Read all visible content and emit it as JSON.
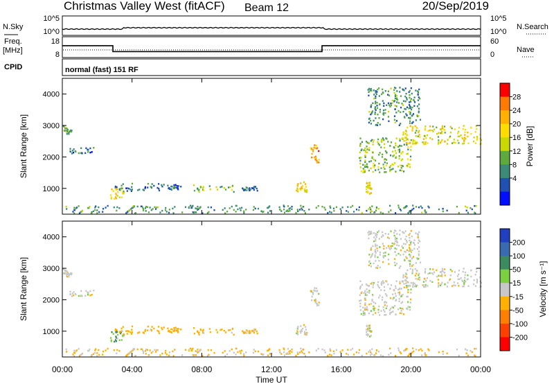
{
  "header": {
    "station": "Christmas Valley West (fitACF)",
    "beam": "Beam 12",
    "date": "20/Sep/2019"
  },
  "panels": {
    "noise": {
      "left_label": "N.Sky",
      "left_ticks": [
        "10^5",
        "10^0"
      ],
      "right_ticks": [
        "10^5",
        "10^0"
      ],
      "right_label": "N.Search"
    },
    "freq": {
      "left_label_1": "Freq.",
      "left_label_2": "[MHz]",
      "left_ticks": [
        "18",
        "8"
      ],
      "right_ticks": [
        "60",
        "0"
      ],
      "right_label": "Nave"
    },
    "cpid": {
      "left_label": "CPID",
      "text": "normal (fast) 151 RF"
    }
  },
  "power_panel": {
    "ylabel": "Slant Range [km]",
    "colorbar_label": "Power [dB]",
    "colorbar_ticks": [
      "28",
      "24",
      "20",
      "16",
      "12",
      "8",
      "4"
    ],
    "colorbar_colors": [
      "#ff0000",
      "#ff7a00",
      "#ffb000",
      "#ffdd00",
      "#c8d800",
      "#5faa3c",
      "#3c8a78",
      "#2050b0",
      "#0010ff"
    ]
  },
  "velocity_panel": {
    "ylabel": "Slant Range [km]",
    "colorbar_label": "Velocity [m s⁻¹]",
    "colorbar_ticks": [
      "200",
      "100",
      "50",
      "15",
      "-15",
      "-50",
      "-100",
      "-200"
    ],
    "colorbar_colors": [
      "#2040c0",
      "#3a6ab0",
      "#3c8a60",
      "#7cd040",
      "#c8c8c8",
      "#ffb000",
      "#ff8000",
      "#ff4000",
      "#ff0000"
    ]
  },
  "x_axis": {
    "label": "Time UT",
    "ticks": [
      "00:00",
      "04:00",
      "08:00",
      "12:00",
      "16:00",
      "20:00",
      "00:00"
    ]
  },
  "chart_data": {
    "type": "heatmap",
    "x_range_hours": [
      0,
      24
    ],
    "y_range_km": [
      180,
      4500
    ],
    "y_ticks": [
      1000,
      2000,
      3000,
      4000
    ],
    "frequency_mhz": [
      {
        "start_h": 0,
        "end_h": 2.9,
        "value": 14
      },
      {
        "start_h": 2.9,
        "end_h": 14.9,
        "value": 10
      },
      {
        "start_h": 14.9,
        "end_h": 24,
        "value": 14
      }
    ],
    "echo_regions": [
      {
        "t0": 0.0,
        "t1": 0.5,
        "r0": 2700,
        "r1": 3000,
        "power_db": 12,
        "velocity": 0
      },
      {
        "t0": 0.4,
        "t1": 1.8,
        "r0": 2100,
        "r1": 2300,
        "power_db": 8,
        "velocity": 0
      },
      {
        "t0": 2.7,
        "t1": 3.5,
        "r0": 650,
        "r1": 1000,
        "power_db": 20,
        "velocity": 30
      },
      {
        "t0": 3.0,
        "t1": 5.8,
        "r0": 900,
        "r1": 1150,
        "power_db": 8,
        "velocity": -30
      },
      {
        "t0": 6.0,
        "t1": 6.8,
        "r0": 950,
        "r1": 1120,
        "power_db": 8,
        "velocity": -30
      },
      {
        "t0": 7.5,
        "t1": 9.8,
        "r0": 880,
        "r1": 1100,
        "power_db": 14,
        "velocity": -30
      },
      {
        "t0": 10.2,
        "t1": 11.2,
        "r0": 920,
        "r1": 1050,
        "power_db": 8,
        "velocity": -20
      },
      {
        "t0": 13.4,
        "t1": 14.0,
        "r0": 850,
        "r1": 1200,
        "power_db": 20,
        "velocity": 0
      },
      {
        "t0": 14.2,
        "t1": 14.7,
        "r0": 1800,
        "r1": 2400,
        "power_db": 24,
        "velocity": 0
      },
      {
        "t0": 17.4,
        "t1": 17.7,
        "r0": 800,
        "r1": 1200,
        "power_db": 20,
        "velocity": 0
      },
      {
        "t0": 17.0,
        "t1": 20.0,
        "r0": 1500,
        "r1": 2600,
        "power_db": 14,
        "velocity": 0
      },
      {
        "t0": 19.5,
        "t1": 24.0,
        "r0": 2400,
        "r1": 3000,
        "power_db": 18,
        "velocity": 0
      },
      {
        "t0": 17.5,
        "t1": 20.5,
        "r0": 3000,
        "r1": 4200,
        "power_db": 10,
        "velocity": 0
      },
      {
        "t0": 0.0,
        "t1": 24.0,
        "r0": 200,
        "r1": 450,
        "power_db": 10,
        "velocity": -20
      }
    ]
  }
}
